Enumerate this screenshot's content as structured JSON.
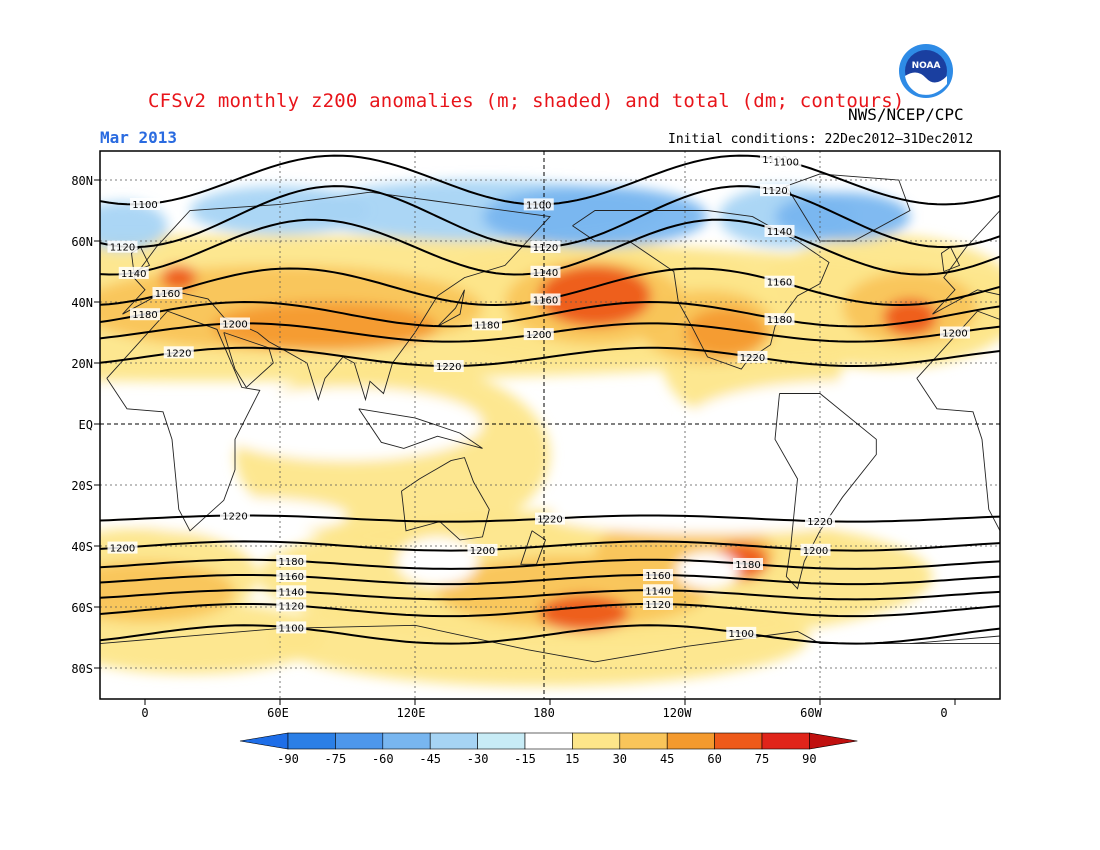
{
  "header": {
    "title": "CFSv2 monthly z200 anomalies (m; shaded) and total (dm; contours)",
    "org": "NWS/NCEP/CPC",
    "month": "Mar 2013",
    "initial_conditions": "Initial conditions: 22Dec2012–31Dec2012",
    "logo_text": "NOAA"
  },
  "axes": {
    "lat_labels": [
      "80N",
      "60N",
      "40N",
      "20N",
      "EQ",
      "20S",
      "40S",
      "60S",
      "80S"
    ],
    "lon_labels": [
      "0",
      "60E",
      "120E",
      "180",
      "120W",
      "60W",
      "0"
    ]
  },
  "colorbar": {
    "labels": [
      "-90",
      "-75",
      "-60",
      "-45",
      "-30",
      "-15",
      "15",
      "30",
      "45",
      "60",
      "75",
      "90"
    ],
    "colors": [
      "#1e6ee8",
      "#2b7fe6",
      "#4d97ec",
      "#78b6f0",
      "#a6d4f4",
      "#c8ecf6",
      "#ffffff",
      "#fde68a",
      "#f9c55a",
      "#f49a2e",
      "#ee5a1a",
      "#e0241a",
      "#c0100f"
    ]
  },
  "chart_data": {
    "type": "heatmap",
    "title": "CFSv2 monthly z200 anomalies (m; shaded) and total (dm; contours)",
    "variable": "200 hPa geopotential height",
    "shaded_units": "m",
    "contour_units": "dm",
    "contour_levels": [
      1100,
      1120,
      1140,
      1160,
      1180,
      1200,
      1220
    ],
    "lat_range": [
      -90,
      90
    ],
    "lon_range": [
      -20,
      380
    ],
    "colorbar_levels": [
      -90,
      -75,
      -60,
      -45,
      -30,
      -15,
      15,
      30,
      45,
      60,
      75,
      90
    ],
    "grid": true
  }
}
